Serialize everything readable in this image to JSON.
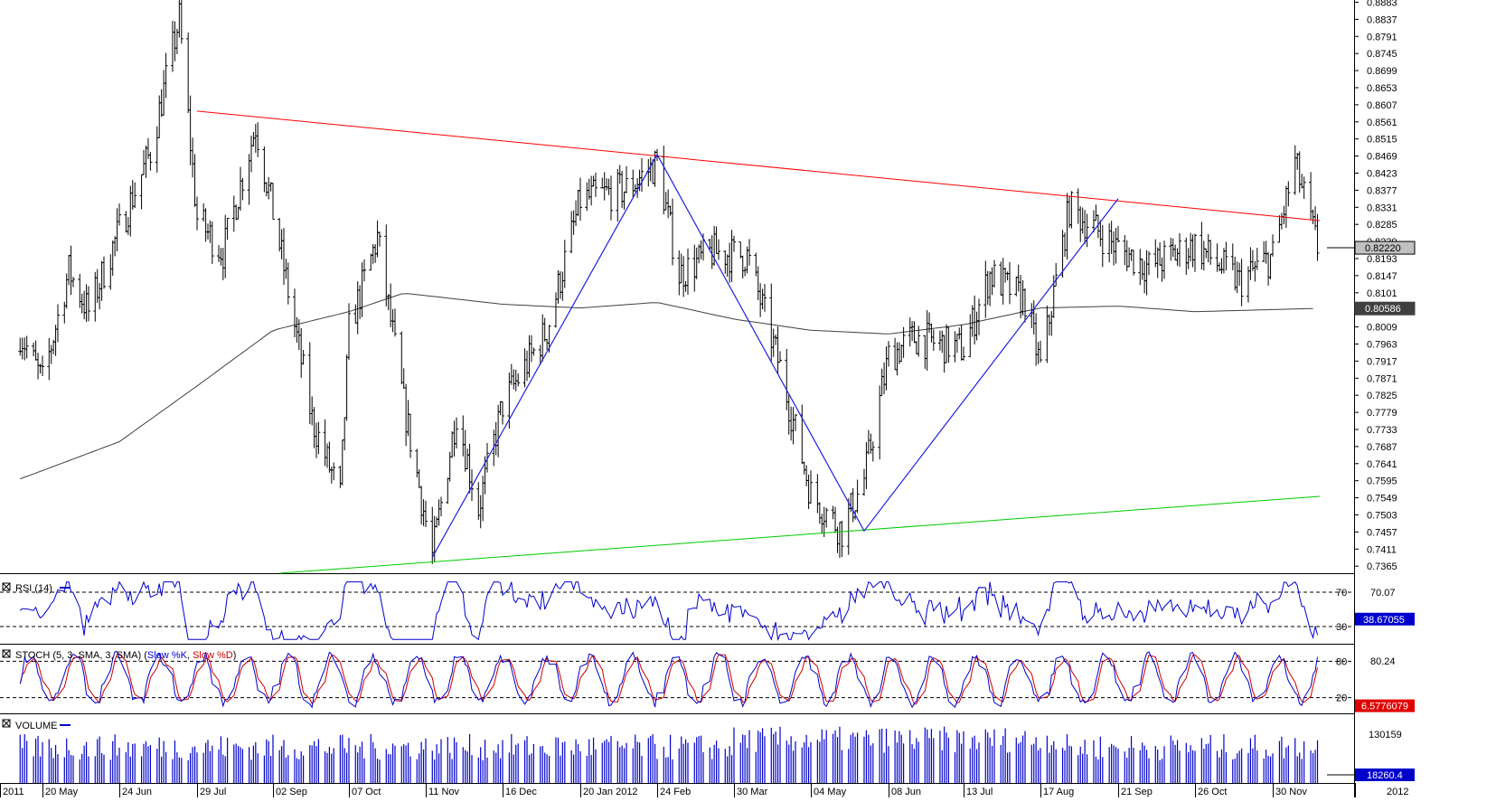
{
  "chart_data": [
    {
      "panel": "price",
      "type": "bar",
      "title": "",
      "y_axis_ticks": [
        "0.8883",
        "0.8837",
        "0.8791",
        "0.8745",
        "0.8699",
        "0.8653",
        "0.8607",
        "0.8561",
        "0.8515",
        "0.8469",
        "0.8423",
        "0.8377",
        "0.8331",
        "0.8285",
        "0.8239",
        "0.8193",
        "0.8147",
        "0.8101",
        "0.8055",
        "0.8009",
        "0.7963",
        "0.7917",
        "0.7871",
        "0.7825",
        "0.7779",
        "0.7733",
        "0.7687",
        "0.7641",
        "0.7595",
        "0.7549",
        "0.7503",
        "0.7457",
        "0.7411",
        "0.7365"
      ],
      "ylim": [
        0.7346,
        0.8889
      ],
      "last_price_label": "0.82220",
      "moving_average_label": "0.80586",
      "series_close_approx": [
        {
          "date": "2011-05-10",
          "close": 0.7993
        },
        {
          "date": "2011-05-20",
          "close": 0.786
        },
        {
          "date": "2011-06-01",
          "close": 0.816
        },
        {
          "date": "2011-06-10",
          "close": 0.805
        },
        {
          "date": "2011-06-24",
          "close": 0.827
        },
        {
          "date": "2011-07-08",
          "close": 0.848
        },
        {
          "date": "2011-07-21",
          "close": 0.884
        },
        {
          "date": "2011-07-29",
          "close": 0.83
        },
        {
          "date": "2011-08-10",
          "close": 0.821
        },
        {
          "date": "2011-08-25",
          "close": 0.855
        },
        {
          "date": "2011-09-05",
          "close": 0.823
        },
        {
          "date": "2011-09-20",
          "close": 0.776
        },
        {
          "date": "2011-10-03",
          "close": 0.755
        },
        {
          "date": "2011-10-07",
          "close": 0.8
        },
        {
          "date": "2011-10-20",
          "close": 0.825
        },
        {
          "date": "2011-11-01",
          "close": 0.78
        },
        {
          "date": "2011-11-14",
          "close": 0.739
        },
        {
          "date": "2011-11-25",
          "close": 0.778
        },
        {
          "date": "2011-12-05",
          "close": 0.752
        },
        {
          "date": "2011-12-16",
          "close": 0.78
        },
        {
          "date": "2012-01-05",
          "close": 0.8
        },
        {
          "date": "2012-01-20",
          "close": 0.835
        },
        {
          "date": "2012-02-10",
          "close": 0.838
        },
        {
          "date": "2012-02-24",
          "close": 0.845
        },
        {
          "date": "2012-03-05",
          "close": 0.815
        },
        {
          "date": "2012-03-20",
          "close": 0.821
        },
        {
          "date": "2012-04-05",
          "close": 0.82
        },
        {
          "date": "2012-04-20",
          "close": 0.79
        },
        {
          "date": "2012-05-04",
          "close": 0.756
        },
        {
          "date": "2012-05-18",
          "close": 0.746
        },
        {
          "date": "2012-05-28",
          "close": 0.76
        },
        {
          "date": "2012-06-08",
          "close": 0.793
        },
        {
          "date": "2012-06-20",
          "close": 0.798
        },
        {
          "date": "2012-07-05",
          "close": 0.796
        },
        {
          "date": "2012-07-13",
          "close": 0.795
        },
        {
          "date": "2012-07-25",
          "close": 0.815
        },
        {
          "date": "2012-08-10",
          "close": 0.808
        },
        {
          "date": "2012-08-17",
          "close": 0.79
        },
        {
          "date": "2012-08-30",
          "close": 0.833
        },
        {
          "date": "2012-09-21",
          "close": 0.822
        },
        {
          "date": "2012-10-05",
          "close": 0.817
        },
        {
          "date": "2012-10-26",
          "close": 0.823
        },
        {
          "date": "2012-11-15",
          "close": 0.813
        },
        {
          "date": "2012-11-30",
          "close": 0.82
        },
        {
          "date": "2012-12-10",
          "close": 0.845
        },
        {
          "date": "2012-12-20",
          "close": 0.8222
        }
      ],
      "moving_average_approx": [
        {
          "date": "2011-05-10",
          "value": 0.76
        },
        {
          "date": "2011-06-24",
          "value": 0.77
        },
        {
          "date": "2011-07-29",
          "value": 0.785
        },
        {
          "date": "2011-09-02",
          "value": 0.8
        },
        {
          "date": "2011-10-07",
          "value": 0.805
        },
        {
          "date": "2011-11-01",
          "value": 0.81
        },
        {
          "date": "2011-12-16",
          "value": 0.807
        },
        {
          "date": "2012-01-20",
          "value": 0.806
        },
        {
          "date": "2012-02-24",
          "value": 0.8075
        },
        {
          "date": "2012-03-30",
          "value": 0.803
        },
        {
          "date": "2012-05-04",
          "value": 0.8
        },
        {
          "date": "2012-06-08",
          "value": 0.799
        },
        {
          "date": "2012-07-13",
          "value": 0.8015
        },
        {
          "date": "2012-08-17",
          "value": 0.806
        },
        {
          "date": "2012-09-21",
          "value": 0.8065
        },
        {
          "date": "2012-10-26",
          "value": 0.805
        },
        {
          "date": "2012-12-20",
          "value": 0.8059
        }
      ],
      "trendlines": [
        {
          "color": "#ff0000",
          "from": {
            "date": "2011-07-29",
            "value": 0.859
          },
          "to": {
            "date": "2012-12-21",
            "value": 0.8295
          }
        },
        {
          "color": "#00cc00",
          "from": {
            "date": "2011-09-05",
            "value": 0.7346
          },
          "to": {
            "date": "2012-12-21",
            "value": 0.7553
          }
        }
      ],
      "zigzag": [
        {
          "date": "2011-11-14",
          "value": 0.7389
        },
        {
          "date": "2012-02-24",
          "value": 0.8473
        },
        {
          "date": "2012-05-28",
          "value": 0.746
        },
        {
          "date": "2012-09-21",
          "value": 0.8354
        }
      ],
      "colors": {
        "bars": "#000000",
        "ma": "#404040",
        "resistance": "#ff0000",
        "support": "#00cc00",
        "zigzag": "#2020e0"
      }
    },
    {
      "panel": "rsi",
      "type": "line",
      "legend": "RSI (14)",
      "levels": [
        "70",
        "30"
      ],
      "value_labels": [
        "70.07",
        "38.67055"
      ],
      "ylim": [
        10,
        90
      ],
      "color": "#0000cc"
    },
    {
      "panel": "stoch",
      "type": "line",
      "legend_prefix": "STOCH (5, 3, SMA, 3, SMA)",
      "series": [
        {
          "name": "Slow %K",
          "color": "#0000cc"
        },
        {
          "name": "Slow %D",
          "color": "#cc0000"
        }
      ],
      "levels": [
        "80",
        "20"
      ],
      "value_labels": [
        "80.24",
        "6.5776079"
      ],
      "ylim": [
        0,
        100
      ]
    },
    {
      "panel": "volume",
      "type": "bar",
      "legend": "VOLUME",
      "value_labels": [
        "130159",
        "18260.4"
      ],
      "color": "#0000cc"
    }
  ],
  "x_axis_labels": [
    "2011",
    "20 May",
    "24 Jun",
    "29 Jul",
    "02 Sep",
    "07 Oct",
    "11 Nov",
    "16 Dec",
    "20 Jan 2012",
    "24 Feb",
    "30 Mar",
    "04 May",
    "08 Jun",
    "13 Jul",
    "17 Aug",
    "21 Sep",
    "26 Oct",
    "30 Nov",
    "2012"
  ]
}
